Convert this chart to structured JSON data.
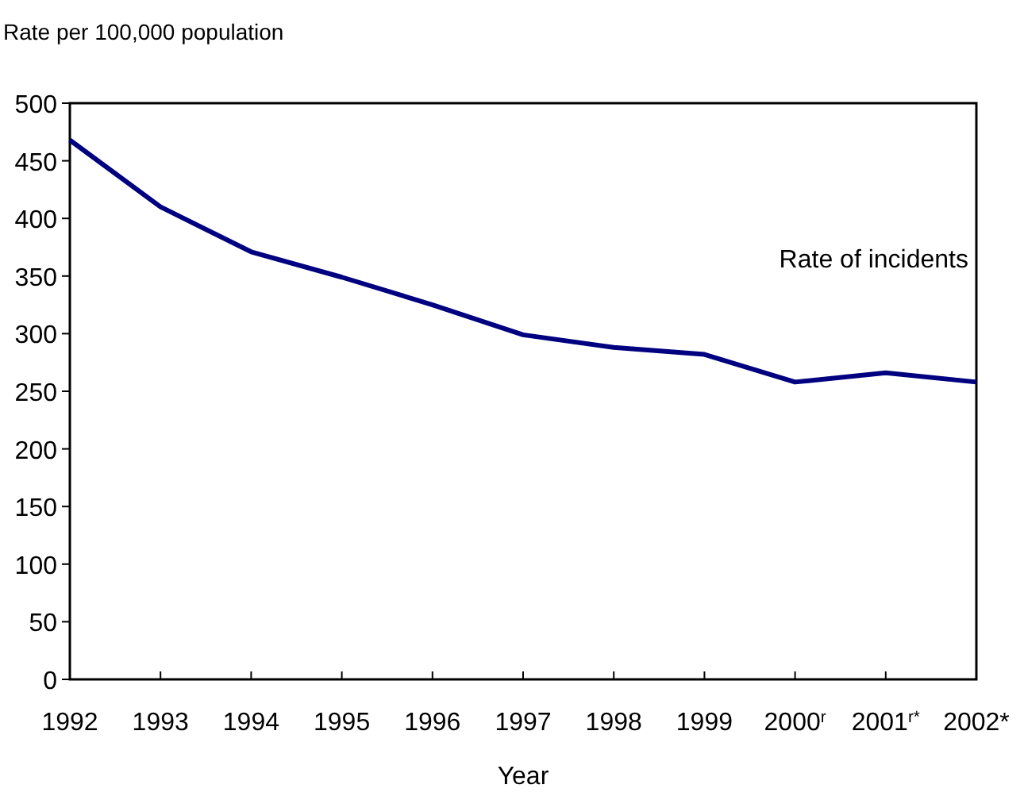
{
  "chart_data": {
    "type": "line",
    "ylabel": "Rate per 100,000 population",
    "xlabel": "Year",
    "categories": [
      "1992",
      "1993",
      "1994",
      "1995",
      "1996",
      "1997",
      "1998",
      "1999",
      "2000$^{r}$",
      "2001$^{r*}$",
      "2002*"
    ],
    "series": [
      {
        "name": "Rate of incidents",
        "color": "#000080",
        "values": [
          468,
          410,
          371,
          349,
          325,
          299,
          288,
          282,
          258,
          266,
          258
        ]
      }
    ],
    "ylim": [
      0,
      500
    ],
    "yticks": [
      0,
      50,
      100,
      150,
      200,
      250,
      300,
      350,
      400,
      450,
      500
    ],
    "grid": false,
    "marker": "none",
    "line_style": "solid"
  }
}
